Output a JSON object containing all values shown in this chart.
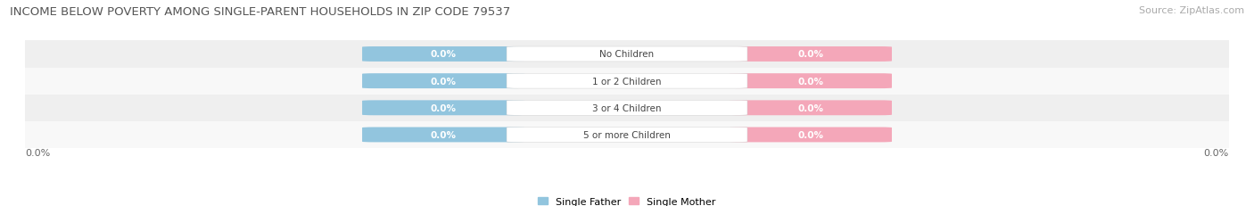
{
  "title": "INCOME BELOW POVERTY AMONG SINGLE-PARENT HOUSEHOLDS IN ZIP CODE 79537",
  "source": "Source: ZipAtlas.com",
  "categories": [
    "No Children",
    "1 or 2 Children",
    "3 or 4 Children",
    "5 or more Children"
  ],
  "single_father_values": [
    0.0,
    0.0,
    0.0,
    0.0
  ],
  "single_mother_values": [
    0.0,
    0.0,
    0.0,
    0.0
  ],
  "father_color": "#92C5DE",
  "mother_color": "#F4A7B9",
  "row_colors": [
    "#F0F0F0",
    "#FAFAFA",
    "#F0F0F0",
    "#FAFAFA"
  ],
  "title_fontsize": 9.5,
  "source_fontsize": 8,
  "label_fontsize": 7.5,
  "value_fontsize": 7.5,
  "tick_fontsize": 8,
  "legend_fontsize": 8,
  "background_color": "#ffffff",
  "xlim_left_label": "0.0%",
  "xlim_right_label": "0.0%"
}
